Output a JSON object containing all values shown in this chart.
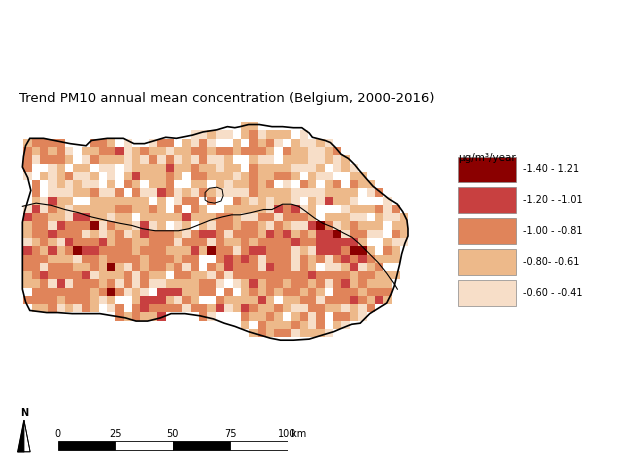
{
  "title": "Trend PM10 annual mean concentration (Belgium, 2000-2016)",
  "title_fontsize": 9.5,
  "legend_title": "μg/m³/year",
  "legend_labels": [
    "-1.40 - 1.21",
    "-1.20 - -1.01",
    "-1.00 - -0.81",
    "-0.80- -0.61",
    "-0.60 - -0.41"
  ],
  "legend_colors": [
    "#8B0000",
    "#C84040",
    "#E0845A",
    "#EDB98A",
    "#F7DEC8"
  ],
  "background_color": "#FFFFFF",
  "figsize": [
    6.39,
    4.73
  ],
  "dpi": 100,
  "map_xlim": [
    2.4,
    6.55
  ],
  "map_ylim": [
    49.42,
    51.65
  ],
  "seed": 42
}
